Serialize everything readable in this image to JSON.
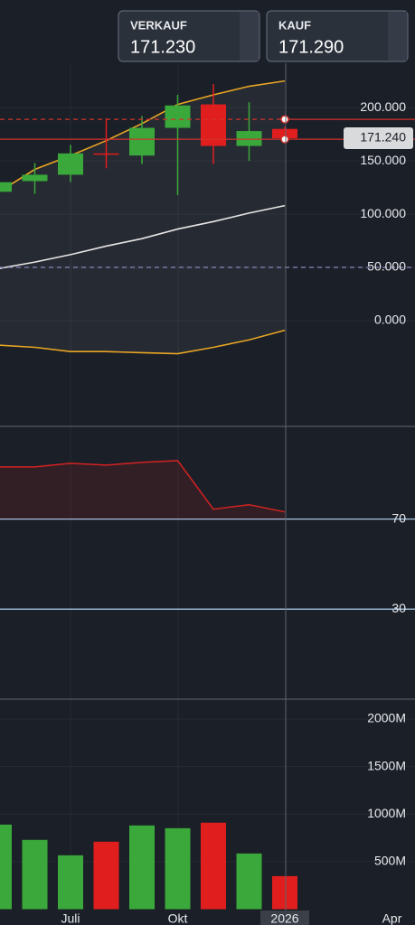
{
  "header": {
    "sell": {
      "label": "VERKAUF",
      "price": "171.230"
    },
    "buy": {
      "label": "KAUF",
      "price": "171.290"
    }
  },
  "chart_data": [
    {
      "type": "candlestick",
      "open": [
        121,
        131,
        137,
        157,
        155,
        181,
        203,
        164,
        180,
        null,
        null,
        null
      ],
      "high": [
        131,
        148,
        165,
        190,
        192,
        212,
        222,
        205,
        182,
        null,
        null,
        null
      ],
      "low": [
        120,
        119,
        130,
        143,
        147,
        118,
        147,
        150,
        170,
        null,
        null,
        null
      ],
      "close": [
        130,
        137,
        157,
        156,
        181,
        202,
        164,
        178,
        171.24,
        null,
        null,
        null
      ],
      "up_color": "#3aa83a",
      "down_color": "#e01e1e",
      "series": [
        {
          "color": "#e8a524",
          "values": [
            121,
            142,
            155,
            169,
            185,
            203,
            212,
            220,
            225,
            null,
            null,
            null
          ]
        },
        {
          "color": "#e6e6e6",
          "values": [
            49,
            55,
            62,
            70,
            77,
            86,
            93,
            101,
            108,
            null,
            null,
            null
          ]
        },
        {
          "color": "#e8a524",
          "values": [
            -23,
            -25,
            -29,
            -29,
            -30,
            -31,
            -25,
            -18,
            -9,
            null,
            null,
            null
          ]
        }
      ],
      "levels": [
        {
          "value": 189,
          "color": "#d4302c",
          "dashed": true,
          "marker": true
        },
        {
          "value": 170.3,
          "color": "#d4302c",
          "dashed": false,
          "marker": true
        },
        {
          "value": 50,
          "color": "#8c86c0",
          "dashed": true,
          "marker": false
        }
      ],
      "price_label": {
        "value": 171.24,
        "label": "171.240"
      },
      "ylim": [
        -97.5,
        301
      ],
      "yticks": [
        {
          "value": 0,
          "label": "0.000"
        },
        {
          "value": 50,
          "label": "50.000"
        },
        {
          "value": 100,
          "label": "100.000"
        },
        {
          "value": 150,
          "label": "150.000"
        },
        {
          "value": 200,
          "label": "200.000"
        }
      ],
      "grid": true
    },
    {
      "type": "area",
      "values": [
        93.2,
        93.2,
        94.8,
        94,
        95.2,
        96,
        74.4,
        76.4,
        73.2,
        null,
        null,
        null
      ],
      "color": "#d42222",
      "baseline": 70,
      "ylim": [
        -9.6,
        110.8
      ],
      "yticks": [
        30,
        70
      ],
      "tick_line_color": "#a8c8e8"
    },
    {
      "type": "bar",
      "categories": [
        null,
        null,
        "Juli",
        null,
        null,
        "Okt",
        null,
        null,
        "2026",
        null,
        null,
        "Apr"
      ],
      "values": [
        890,
        729,
        567,
        710,
        881,
        852,
        910,
        586,
        348,
        null,
        null,
        null
      ],
      "colors": [
        "#3aa83a",
        "#3aa83a",
        "#3aa83a",
        "#e01e1e",
        "#3aa83a",
        "#3aa83a",
        "#e01e1e",
        "#3aa83a",
        "#e01e1e",
        null,
        null,
        null
      ],
      "ylim": [
        0,
        2200
      ],
      "yticks": [
        {
          "value": 500,
          "label": "500M"
        },
        {
          "value": 1000,
          "label": "1000M"
        },
        {
          "value": 1500,
          "label": "1500M"
        },
        {
          "value": 2000,
          "label": "2000M"
        }
      ],
      "grid": true,
      "highlight_category": 8
    }
  ]
}
